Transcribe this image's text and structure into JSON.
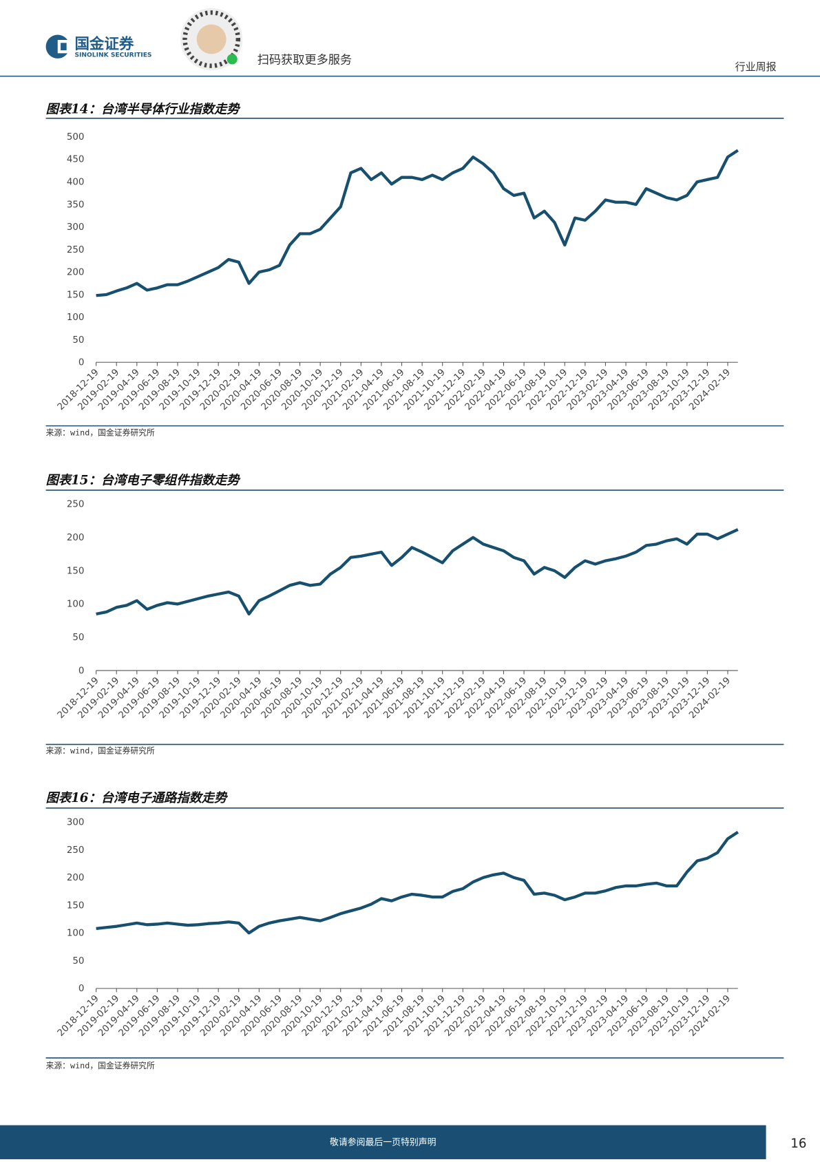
{
  "header": {
    "brand": "国金证券",
    "brand_en": "SINOLINK SECURITIES",
    "qr_caption": "扫码获取更多服务",
    "report_type": "行业周报"
  },
  "chart_data": [
    {
      "type": "line",
      "title": "图表14：台湾半导体行业指数走势",
      "source": "来源：wind，国金证券研究所",
      "color": "#17506e",
      "categories": [
        "2018-12-19",
        null,
        "2019-02-19",
        null,
        "2019-04-19",
        null,
        "2019-06-19",
        null,
        "2019-08-19",
        null,
        "2019-10-19",
        null,
        "2019-12-19",
        null,
        "2020-02-19",
        null,
        "2020-04-19",
        null,
        "2020-06-19",
        null,
        "2020-08-19",
        null,
        "2020-10-19",
        null,
        "2020-12-19",
        null,
        "2021-02-19",
        null,
        "2021-04-19",
        null,
        "2021-06-19",
        null,
        "2021-08-19",
        null,
        "2021-10-19",
        null,
        "2021-12-19",
        null,
        "2022-02-19",
        null,
        "2022-04-19",
        null,
        "2022-06-19",
        null,
        "2022-08-19",
        null,
        "2022-10-19",
        null,
        "2022-12-19",
        null,
        "2023-02-19",
        null,
        "2023-04-19",
        null,
        "2023-06-19",
        null,
        "2023-08-19",
        null,
        "2023-10-19",
        null,
        "2023-12-19",
        null,
        "2024-02-19",
        null
      ],
      "values": [
        148,
        150,
        158,
        165,
        175,
        160,
        165,
        172,
        172,
        180,
        190,
        200,
        210,
        228,
        222,
        175,
        200,
        205,
        215,
        260,
        285,
        285,
        295,
        320,
        345,
        420,
        430,
        405,
        420,
        395,
        410,
        410,
        405,
        415,
        405,
        420,
        430,
        455,
        440,
        420,
        385,
        370,
        375,
        320,
        335,
        310,
        260,
        320,
        315,
        335,
        360,
        355,
        355,
        350,
        385,
        375,
        365,
        360,
        370,
        400,
        405,
        410,
        455,
        470
      ],
      "ylim": [
        0,
        500
      ],
      "yticks": [
        0,
        50,
        100,
        150,
        200,
        250,
        300,
        350,
        400,
        450,
        500
      ]
    },
    {
      "type": "line",
      "title": "图表15：台湾电子零组件指数走势",
      "source": "来源：wind，国金证券研究所",
      "color": "#17506e",
      "categories": [
        "2018-12-19",
        null,
        "2019-02-19",
        null,
        "2019-04-19",
        null,
        "2019-06-19",
        null,
        "2019-08-19",
        null,
        "2019-10-19",
        null,
        "2019-12-19",
        null,
        "2020-02-19",
        null,
        "2020-04-19",
        null,
        "2020-06-19",
        null,
        "2020-08-19",
        null,
        "2020-10-19",
        null,
        "2020-12-19",
        null,
        "2021-02-19",
        null,
        "2021-04-19",
        null,
        "2021-06-19",
        null,
        "2021-08-19",
        null,
        "2021-10-19",
        null,
        "2021-12-19",
        null,
        "2022-02-19",
        null,
        "2022-04-19",
        null,
        "2022-06-19",
        null,
        "2022-08-19",
        null,
        "2022-10-19",
        null,
        "2022-12-19",
        null,
        "2023-02-19",
        null,
        "2023-04-19",
        null,
        "2023-06-19",
        null,
        "2023-08-19",
        null,
        "2023-10-19",
        null,
        "2023-12-19",
        null,
        "2024-02-19",
        null
      ],
      "values": [
        85,
        88,
        95,
        98,
        105,
        92,
        98,
        102,
        100,
        104,
        108,
        112,
        115,
        118,
        112,
        85,
        105,
        112,
        120,
        128,
        132,
        128,
        130,
        145,
        155,
        170,
        172,
        175,
        178,
        158,
        170,
        185,
        178,
        170,
        162,
        180,
        190,
        200,
        190,
        185,
        180,
        170,
        165,
        145,
        155,
        150,
        140,
        155,
        165,
        160,
        165,
        168,
        172,
        178,
        188,
        190,
        195,
        198,
        190,
        205,
        205,
        198,
        205,
        212
      ],
      "ylim": [
        0,
        250
      ],
      "yticks": [
        0,
        50,
        100,
        150,
        200,
        250
      ]
    },
    {
      "type": "line",
      "title": "图表16：台湾电子通路指数走势",
      "source": "来源：wind，国金证券研究所",
      "color": "#17506e",
      "categories": [
        "2018-12-19",
        null,
        "2019-02-19",
        null,
        "2019-04-19",
        null,
        "2019-06-19",
        null,
        "2019-08-19",
        null,
        "2019-10-19",
        null,
        "2019-12-19",
        null,
        "2020-02-19",
        null,
        "2020-04-19",
        null,
        "2020-06-19",
        null,
        "2020-08-19",
        null,
        "2020-10-19",
        null,
        "2020-12-19",
        null,
        "2021-02-19",
        null,
        "2021-04-19",
        null,
        "2021-06-19",
        null,
        "2021-08-19",
        null,
        "2021-10-19",
        null,
        "2021-12-19",
        null,
        "2022-02-19",
        null,
        "2022-04-19",
        null,
        "2022-06-19",
        null,
        "2022-08-19",
        null,
        "2022-10-19",
        null,
        "2022-12-19",
        null,
        "2023-02-19",
        null,
        "2023-04-19",
        null,
        "2023-06-19",
        null,
        "2023-08-19",
        null,
        "2023-10-19",
        null,
        "2023-12-19",
        null,
        "2024-02-19",
        null
      ],
      "values": [
        108,
        110,
        112,
        115,
        118,
        115,
        116,
        118,
        116,
        114,
        115,
        117,
        118,
        120,
        118,
        100,
        112,
        118,
        122,
        125,
        128,
        125,
        122,
        128,
        135,
        140,
        145,
        152,
        162,
        158,
        165,
        170,
        168,
        165,
        165,
        175,
        180,
        192,
        200,
        205,
        208,
        200,
        195,
        170,
        172,
        168,
        160,
        165,
        172,
        172,
        176,
        182,
        185,
        185,
        188,
        190,
        185,
        185,
        210,
        230,
        235,
        245,
        270,
        282
      ],
      "ylim": [
        0,
        300
      ],
      "yticks": [
        0,
        50,
        100,
        150,
        200,
        250,
        300
      ]
    }
  ],
  "footer": {
    "disclaimer": "敬请参阅最后一页特别声明",
    "page_number": "16"
  }
}
